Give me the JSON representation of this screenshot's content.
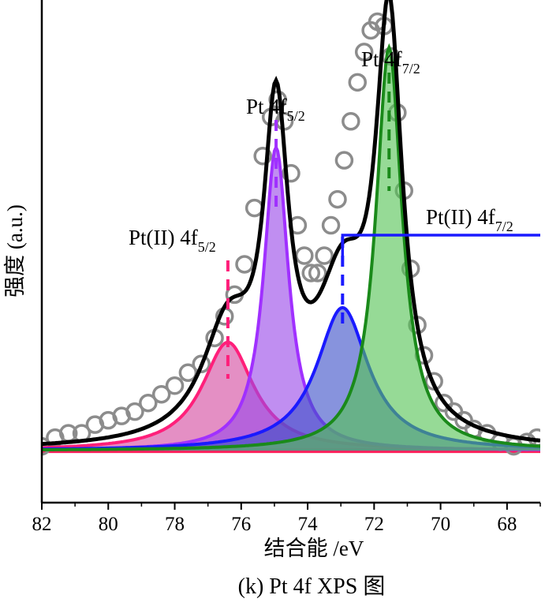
{
  "chart_data": {
    "type": "line",
    "title": "",
    "caption": "(k) Pt 4f XPS 图",
    "xlabel": "结合能 /eV",
    "ylabel": "强度 (a.u.)",
    "xlim": [
      82,
      67
    ],
    "ylim": [
      -0.12,
      1.04
    ],
    "x_ticks": [
      82,
      80,
      78,
      76,
      74,
      72,
      70,
      68
    ],
    "x_tick_labels": [
      "82",
      "80",
      "78",
      "76",
      "74",
      "72",
      "70",
      "68"
    ],
    "y_ticks_shown": false,
    "grid": false,
    "legend": "none",
    "series": [
      {
        "name": "raw data",
        "kind": "scatter-open-circles",
        "color": "#8c8c8c",
        "x": [
          82.0,
          81.6,
          81.2,
          80.8,
          80.4,
          80.0,
          79.6,
          79.2,
          78.8,
          78.4,
          78.0,
          77.6,
          77.2,
          76.8,
          76.5,
          76.2,
          75.9,
          75.6,
          75.35,
          75.1,
          74.9,
          74.7,
          74.5,
          74.3,
          74.1,
          73.9,
          73.7,
          73.5,
          73.3,
          73.1,
          72.9,
          72.7,
          72.5,
          72.3,
          72.1,
          71.9,
          71.7,
          71.5,
          71.3,
          71.1,
          70.9,
          70.7,
          70.5,
          70.2,
          69.9,
          69.6,
          69.3,
          69.0,
          68.6,
          68.2,
          67.8,
          67.4,
          67.1
        ],
        "y": [
          0.01,
          0.03,
          0.04,
          0.04,
          0.06,
          0.07,
          0.08,
          0.09,
          0.11,
          0.13,
          0.15,
          0.18,
          0.2,
          0.26,
          0.31,
          0.36,
          0.43,
          0.56,
          0.68,
          0.77,
          0.81,
          0.76,
          0.64,
          0.52,
          0.45,
          0.41,
          0.41,
          0.45,
          0.52,
          0.58,
          0.67,
          0.76,
          0.85,
          0.92,
          0.97,
          0.99,
          0.98,
          0.91,
          0.78,
          0.6,
          0.42,
          0.29,
          0.22,
          0.16,
          0.11,
          0.09,
          0.07,
          0.05,
          0.04,
          0.02,
          0.01,
          0.02,
          0.03
        ]
      },
      {
        "name": "Pt(II) 4f5/2",
        "kind": "filled-peak",
        "color": "#ff1f7a",
        "fill": "#d44aa0",
        "center": 76.4,
        "height": 0.25,
        "width": 0.95
      },
      {
        "name": "Pt 4f5/2",
        "kind": "filled-peak",
        "color": "#a030ff",
        "fill": "#9a48e8",
        "center": 74.95,
        "height": 0.7,
        "width": 0.45
      },
      {
        "name": "Pt(II) 4f7/2",
        "kind": "filled-peak",
        "color": "#1a1aff",
        "fill": "#3d50c8",
        "center": 72.95,
        "height": 0.33,
        "width": 0.95
      },
      {
        "name": "Pt 4f7/2",
        "kind": "filled-peak",
        "color": "#1a8a1a",
        "fill": "#55c455",
        "center": 71.55,
        "height": 0.93,
        "width": 0.48
      },
      {
        "name": "envelope",
        "kind": "line",
        "color": "#000000"
      },
      {
        "name": "baseline",
        "kind": "line",
        "color": "#ff1f5a",
        "value": 0
      }
    ],
    "annotations": [
      {
        "main": "Pt(",
        "roman": "II",
        "rest": ") 4f",
        "sub": "5/2",
        "x": 76.4
      },
      {
        "main": "Pt 4f",
        "roman": "",
        "rest": "",
        "sub": "5/2",
        "x": 74.95
      },
      {
        "main": "Pt 4f",
        "roman": "",
        "rest": "",
        "sub": "7/2",
        "x": 71.55
      },
      {
        "main": "Pt(",
        "roman": "II",
        "rest": ") 4f",
        "sub": "7/2",
        "x": 72.95
      }
    ]
  }
}
